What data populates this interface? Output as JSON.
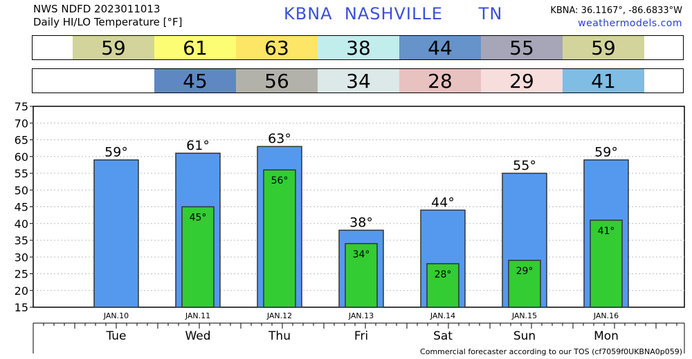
{
  "header": {
    "product": "NWS NDFD 2023011013",
    "subtitle": "Daily HI/LO Temperature [°F]",
    "station_line": "KBNA  NASHVILLE      TN",
    "coords": "KBNA: 36.1167°, -86.6833°W",
    "site": "weathermodels.com"
  },
  "hi_strip": [
    {
      "value": "59",
      "color": "#d3d49b"
    },
    {
      "value": "61",
      "color": "#fdfd73"
    },
    {
      "value": "63",
      "color": "#fde566"
    },
    {
      "value": "38",
      "color": "#c2eded"
    },
    {
      "value": "44",
      "color": "#6693c9"
    },
    {
      "value": "55",
      "color": "#a6a6b8"
    },
    {
      "value": "59",
      "color": "#d3d49b"
    }
  ],
  "lo_strip": [
    {
      "value": "45",
      "color": "#5f88c2"
    },
    {
      "value": "56",
      "color": "#b2b2ab"
    },
    {
      "value": "34",
      "color": "#dde9e9"
    },
    {
      "value": "28",
      "color": "#e8c1c1"
    },
    {
      "value": "29",
      "color": "#f8dddd"
    },
    {
      "value": "41",
      "color": "#7fbde4"
    }
  ],
  "chart_data": {
    "type": "bar",
    "categories": [
      "JAN.10",
      "JAN.11",
      "JAN.12",
      "JAN.13",
      "JAN.14",
      "JAN.15",
      "JAN.16"
    ],
    "days": [
      "Tue",
      "Wed",
      "Thu",
      "Fri",
      "Sat",
      "Sun",
      "Mon"
    ],
    "series": [
      {
        "values": [
          59,
          61,
          63,
          38,
          44,
          55,
          59
        ],
        "color": "#5599ee"
      },
      {
        "values": [
          null,
          45,
          56,
          34,
          28,
          29,
          41
        ],
        "color": "#33cc33"
      }
    ],
    "hi_labels": [
      "59°",
      "61°",
      "63°",
      "38°",
      "44°",
      "55°",
      "59°"
    ],
    "lo_labels": [
      "",
      "45°",
      "56°",
      "34°",
      "28°",
      "29°",
      "41°"
    ],
    "ylim": [
      15,
      75
    ],
    "yticks": [
      "15",
      "20",
      "25",
      "30",
      "35",
      "40",
      "45",
      "50",
      "55",
      "60",
      "65",
      "70",
      "75"
    ],
    "grid": true
  },
  "footer": "Commercial forecaster according to our TOS (cf7059f0UKBNA0p059)"
}
